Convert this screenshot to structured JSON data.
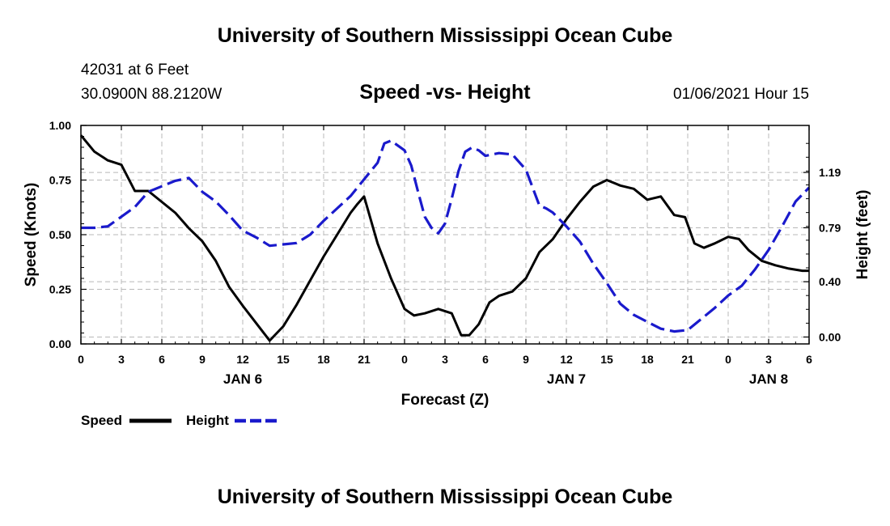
{
  "page": {
    "top_title": "University of Southern Mississippi Ocean Cube",
    "bottom_title": "University of Southern Mississippi Ocean Cube",
    "station": "42031 at 6 Feet",
    "coords": "30.0900N 88.2120W",
    "datetime": "01/06/2021 Hour 15"
  },
  "colors": {
    "speed": "#000000",
    "height": "#1a1acc",
    "grid": "#b8b8b8"
  },
  "chart_data": {
    "type": "line",
    "title": "Speed -vs- Height",
    "xlabel": "Forecast (Z)",
    "ylabel_left": "Speed (Knots)",
    "ylabel_right": "Height (feet)",
    "x_unit": "hours from 0Z Jan 6",
    "xlim": [
      0,
      54
    ],
    "ylim_left": [
      0,
      1
    ],
    "ylim_right": [
      -0.05,
      1.53
    ],
    "x_ticks": [
      {
        "v": 0,
        "label": "0"
      },
      {
        "v": 3,
        "label": "3"
      },
      {
        "v": 6,
        "label": "6"
      },
      {
        "v": 9,
        "label": "9"
      },
      {
        "v": 12,
        "label": "12"
      },
      {
        "v": 15,
        "label": "15"
      },
      {
        "v": 18,
        "label": "18"
      },
      {
        "v": 21,
        "label": "21"
      },
      {
        "v": 24,
        "label": "0"
      },
      {
        "v": 27,
        "label": "3"
      },
      {
        "v": 30,
        "label": "6"
      },
      {
        "v": 33,
        "label": "9"
      },
      {
        "v": 36,
        "label": "12"
      },
      {
        "v": 39,
        "label": "15"
      },
      {
        "v": 42,
        "label": "18"
      },
      {
        "v": 45,
        "label": "21"
      },
      {
        "v": 48,
        "label": "0"
      },
      {
        "v": 51,
        "label": "3"
      },
      {
        "v": 54,
        "label": "6"
      }
    ],
    "day_labels": [
      {
        "v": 12,
        "label": "JAN 6"
      },
      {
        "v": 36,
        "label": "JAN 7"
      },
      {
        "v": 51,
        "label": "JAN 8"
      }
    ],
    "y_ticks_left": [
      "0.00",
      "0.25",
      "0.50",
      "0.75",
      "1.00"
    ],
    "y_ticks_left_values": [
      0,
      0.25,
      0.5,
      0.75,
      1.0
    ],
    "y_ticks_right": [
      "0.00",
      "0.40",
      "0.79",
      "1.19"
    ],
    "y_ticks_right_values": [
      0,
      0.4,
      0.79,
      1.19
    ],
    "grid": true,
    "legend_position": "bottom-left",
    "series": [
      {
        "name": "Speed",
        "axis": "left",
        "style": "solid",
        "x": [
          0,
          1,
          2,
          3,
          4,
          5,
          6,
          7,
          8,
          9,
          10,
          11,
          12,
          13,
          14,
          15,
          16,
          17,
          18,
          19,
          20,
          20.5,
          21,
          22,
          23,
          24,
          24.7,
          25.5,
          26.5,
          27.5,
          28.2,
          28.8,
          29.5,
          30.3,
          31,
          32,
          33,
          34,
          35,
          36,
          37,
          38,
          39,
          40,
          41,
          42,
          43,
          44,
          44.8,
          45.5,
          46.2,
          47,
          48,
          48.8,
          49.5,
          50.5,
          51.5,
          52.5,
          53.5,
          54
        ],
        "values": [
          0.955,
          0.88,
          0.84,
          0.82,
          0.7,
          0.7,
          0.65,
          0.6,
          0.53,
          0.47,
          0.38,
          0.26,
          0.175,
          0.095,
          0.015,
          0.08,
          0.18,
          0.29,
          0.4,
          0.5,
          0.6,
          0.64,
          0.675,
          0.46,
          0.3,
          0.16,
          0.13,
          0.14,
          0.16,
          0.14,
          0.04,
          0.04,
          0.09,
          0.19,
          0.22,
          0.24,
          0.3,
          0.42,
          0.48,
          0.57,
          0.65,
          0.72,
          0.75,
          0.725,
          0.71,
          0.66,
          0.675,
          0.59,
          0.58,
          0.46,
          0.44,
          0.46,
          0.49,
          0.48,
          0.43,
          0.38,
          0.36,
          0.345,
          0.335,
          0.335
        ]
      },
      {
        "name": "Height",
        "axis": "right",
        "style": "dashed",
        "x": [
          0,
          1,
          2,
          3,
          4,
          5,
          6,
          7,
          8,
          9,
          10,
          11,
          12,
          13,
          14,
          15,
          16,
          17,
          18,
          19,
          20,
          21,
          22,
          22.5,
          23,
          24,
          24.5,
          25,
          25.5,
          26,
          26.5,
          27,
          27.5,
          28,
          28.5,
          29,
          29.5,
          30,
          30.5,
          31,
          32,
          33,
          34,
          34.5,
          35,
          36,
          37,
          38,
          39,
          40,
          41,
          42,
          43,
          44,
          45,
          46,
          47,
          48,
          49,
          50,
          51,
          52,
          53,
          54
        ],
        "values": [
          0.79,
          0.79,
          0.8,
          0.87,
          0.94,
          1.05,
          1.09,
          1.13,
          1.15,
          1.05,
          0.98,
          0.88,
          0.77,
          0.72,
          0.66,
          0.67,
          0.68,
          0.74,
          0.84,
          0.93,
          1.02,
          1.14,
          1.26,
          1.4,
          1.42,
          1.35,
          1.24,
          1.05,
          0.87,
          0.79,
          0.75,
          0.82,
          1.0,
          1.2,
          1.34,
          1.37,
          1.35,
          1.31,
          1.32,
          1.33,
          1.32,
          1.21,
          0.95,
          0.93,
          0.9,
          0.8,
          0.69,
          0.53,
          0.39,
          0.24,
          0.16,
          0.11,
          0.06,
          0.04,
          0.05,
          0.13,
          0.21,
          0.3,
          0.37,
          0.49,
          0.63,
          0.8,
          0.98,
          1.08
        ]
      }
    ]
  }
}
